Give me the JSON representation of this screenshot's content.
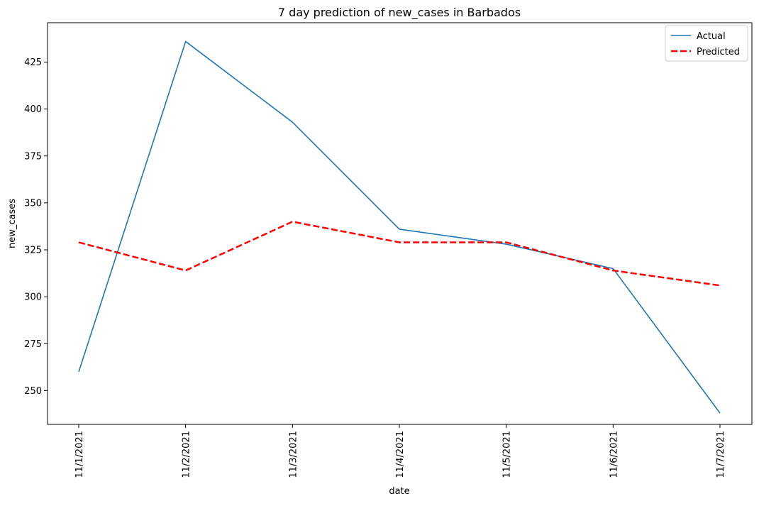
{
  "chart_data": {
    "type": "line",
    "title": "7 day prediction of new_cases in Barbados",
    "xlabel": "date",
    "ylabel": "new_cases",
    "categories": [
      "11/1/2021",
      "11/2/2021",
      "11/3/2021",
      "11/4/2021",
      "11/5/2021",
      "11/6/2021",
      "11/7/2021"
    ],
    "series": [
      {
        "name": "Actual",
        "values": [
          260,
          436,
          393,
          336,
          328,
          315,
          238
        ],
        "color": "#1f77b4",
        "style": "solid"
      },
      {
        "name": "Predicted",
        "values": [
          329,
          314,
          340,
          329,
          329,
          314,
          306
        ],
        "color": "#ff0000",
        "style": "dashed"
      }
    ],
    "ylim": [
      232,
      446
    ],
    "yticks": [
      250,
      275,
      300,
      325,
      350,
      375,
      400,
      425
    ],
    "grid": false,
    "legend_position": "top-right"
  }
}
